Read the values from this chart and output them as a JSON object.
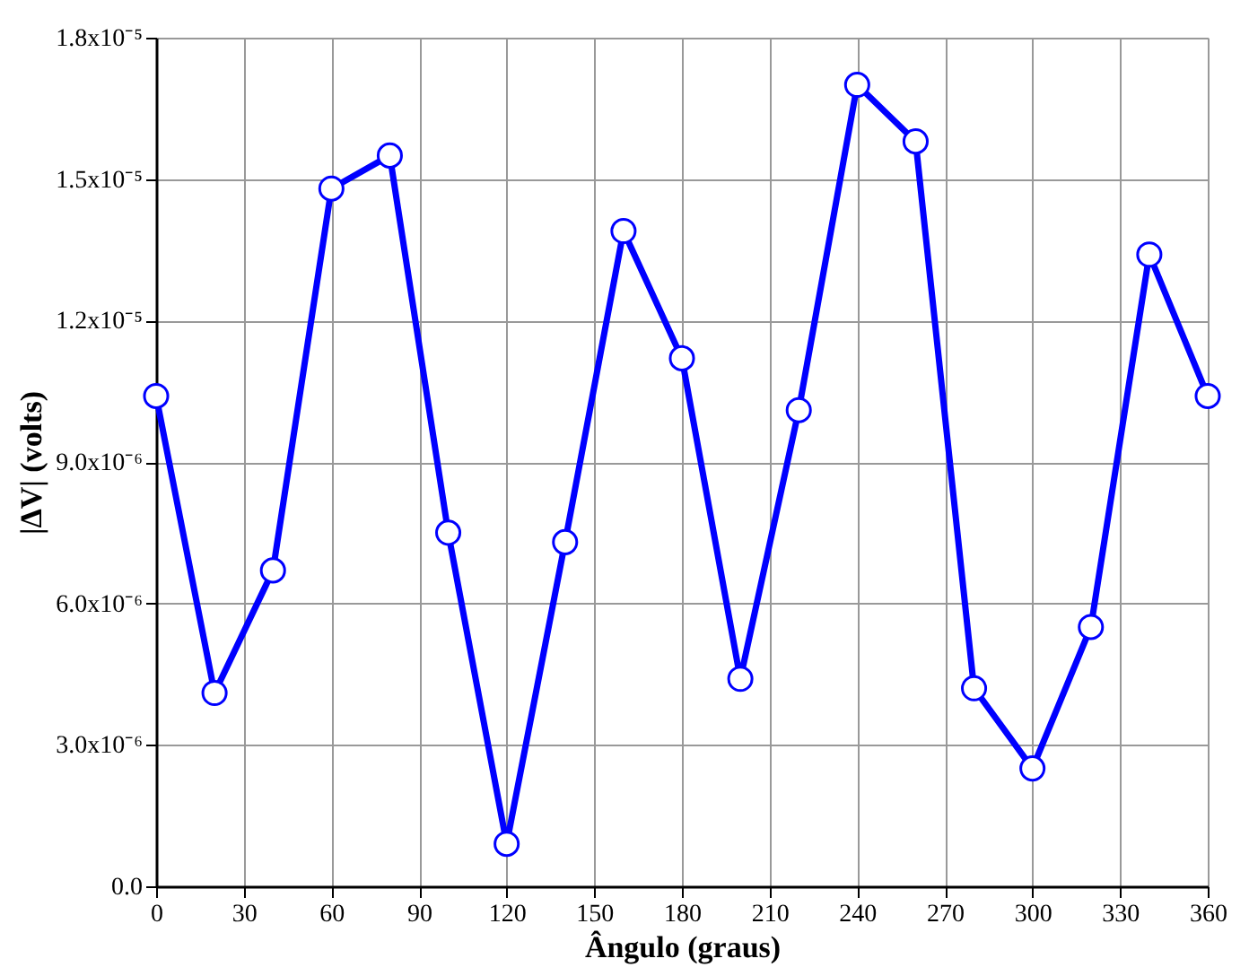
{
  "chart_data": {
    "type": "line",
    "xlabel": "Ângulo (graus)",
    "ylabel": "|ΔV| (volts)",
    "x": [
      0,
      20,
      40,
      60,
      80,
      100,
      120,
      140,
      160,
      180,
      200,
      220,
      240,
      260,
      280,
      300,
      320,
      340,
      360
    ],
    "series": [
      {
        "color": "#0000ff",
        "values": [
          1.04e-05,
          4.1e-06,
          6.7e-06,
          1.48e-05,
          1.55e-05,
          7.5e-06,
          9e-07,
          7.3e-06,
          1.39e-05,
          1.12e-05,
          4.4e-06,
          1.01e-05,
          1.7e-05,
          1.58e-05,
          4.2e-06,
          2.5e-06,
          5.5e-06,
          1.34e-05,
          1.04e-05
        ]
      }
    ],
    "xlim": [
      0,
      360
    ],
    "xticks": [
      0,
      30,
      60,
      90,
      120,
      150,
      180,
      210,
      240,
      270,
      300,
      330,
      360
    ],
    "ylim": [
      0,
      1.8e-05
    ],
    "yticks": [
      {
        "value": 0,
        "label": "0.0"
      },
      {
        "value": 3e-06,
        "label": "3.0x10⁻⁶"
      },
      {
        "value": 6e-06,
        "label": "6.0x10⁻⁶"
      },
      {
        "value": 9e-06,
        "label": "9.0x10⁻⁶"
      },
      {
        "value": 1.2e-05,
        "label": "1.2x10⁻⁵"
      },
      {
        "value": 1.5e-05,
        "label": "1.5x10⁻⁵"
      },
      {
        "value": 1.8e-05,
        "label": "1.8x10⁻⁵"
      }
    ],
    "grid": true,
    "marker": "circle",
    "line_style": "solid"
  }
}
